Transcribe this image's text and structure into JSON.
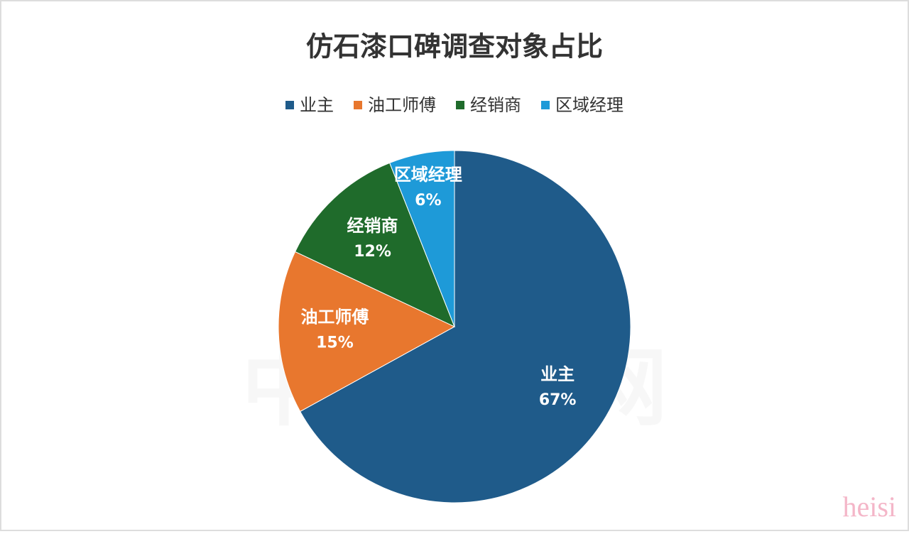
{
  "chart_data": {
    "type": "pie",
    "title": "仿石漆口碑调查对象占比",
    "categories": [
      "业主",
      "油工师傅",
      "经销商",
      "区域经理"
    ],
    "values": [
      67,
      15,
      12,
      6
    ],
    "value_labels": [
      "67%",
      "15%",
      "12%",
      "6%"
    ],
    "colors": [
      "#1f5b8a",
      "#e8772e",
      "#1f6b2b",
      "#1e9ad8"
    ],
    "legend": "top",
    "watermarks": [
      "中外涂料网",
      "heisi"
    ]
  }
}
